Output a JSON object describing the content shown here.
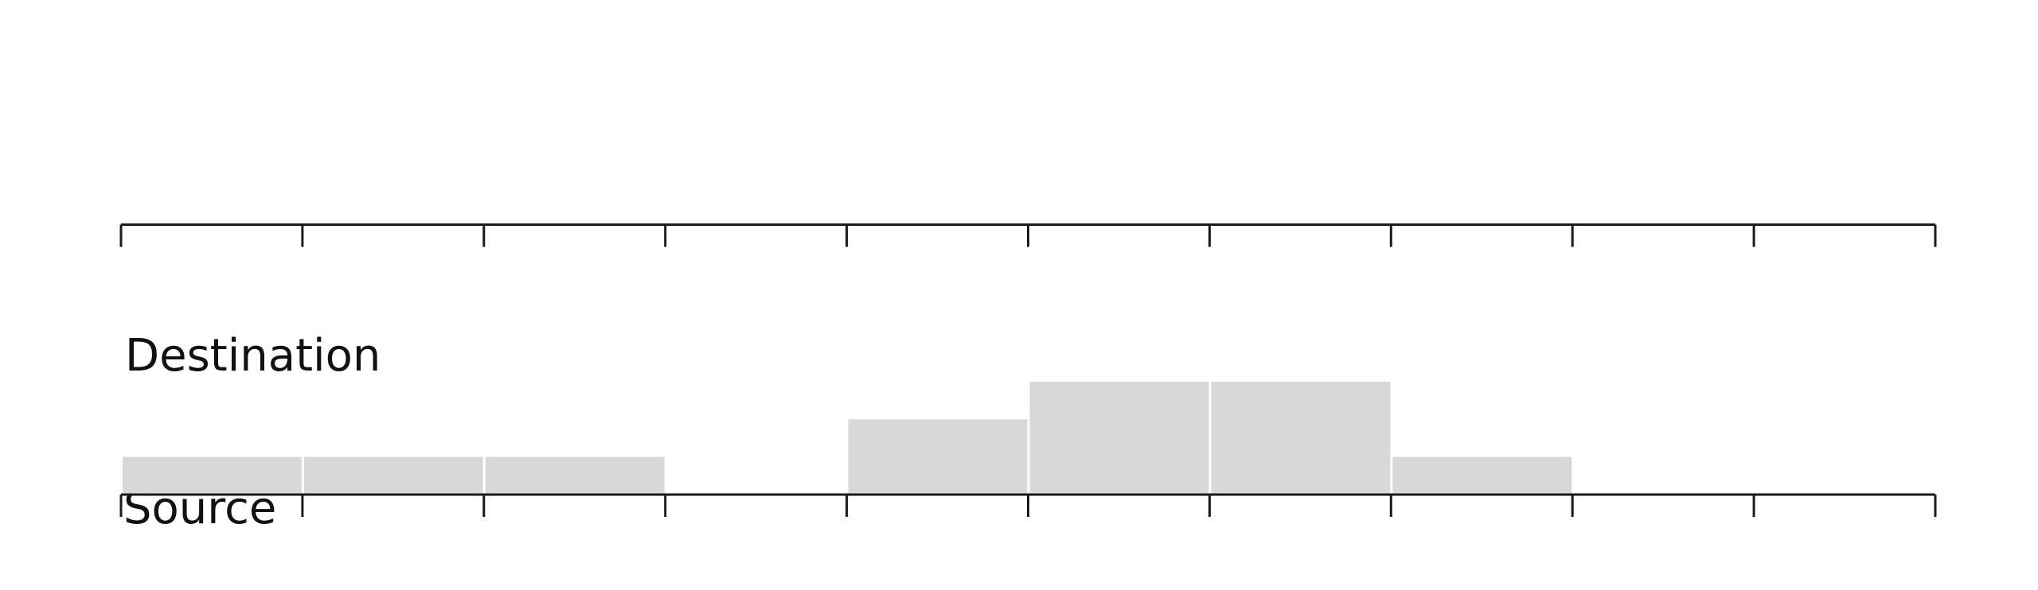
{
  "chart_data": {
    "type": "histogram",
    "top_label": "Destination",
    "bottom_label": "Source",
    "bins": [
      0,
      1,
      2,
      3,
      4,
      5,
      6,
      7,
      8,
      9,
      10
    ],
    "values": [
      1,
      1,
      1,
      0,
      2,
      3,
      3,
      1,
      0,
      0
    ],
    "color": "#d8d8d8",
    "xlim": [
      0,
      10
    ],
    "xticks": [
      0,
      1,
      2,
      3,
      4,
      5,
      6,
      7,
      8,
      9,
      10
    ],
    "ylim": [
      0,
      3
    ]
  }
}
